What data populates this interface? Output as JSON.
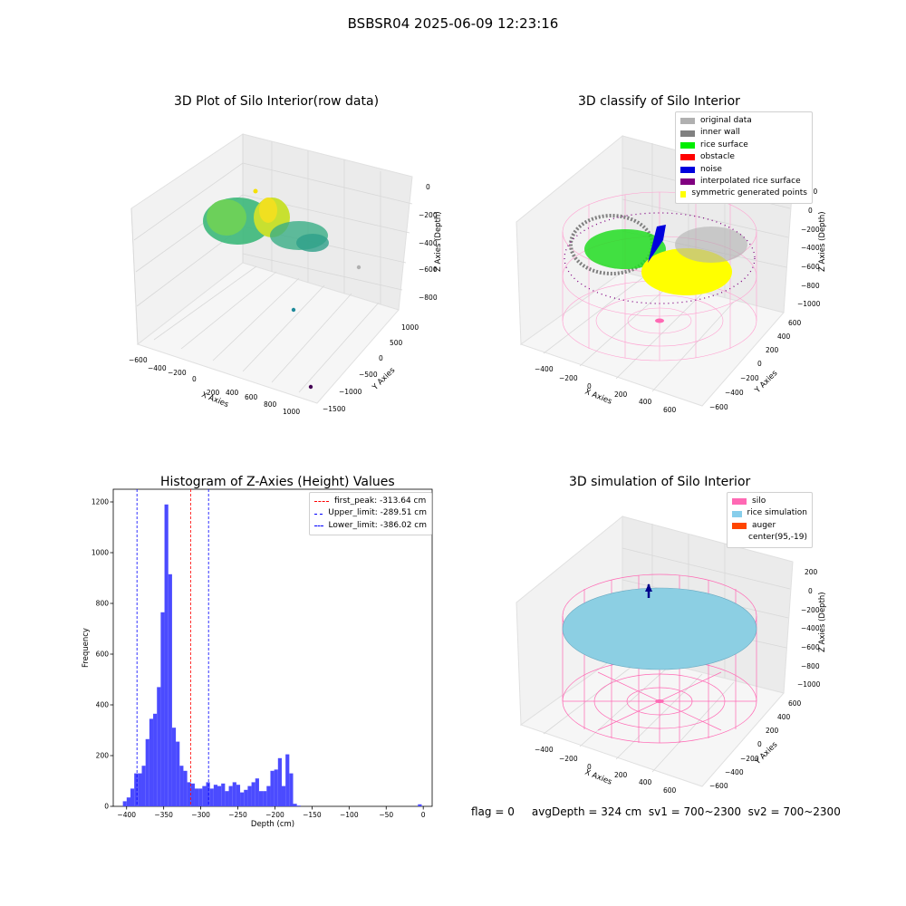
{
  "figure": {
    "suptitle": "BSBSR04 2025-06-09 12:23:16",
    "footer": "flag = 0     avgDepth = 324 cm  sv1 = 700~2300  sv2 = 700~2300"
  },
  "panels": {
    "raw": {
      "title": "3D Plot of Silo Interior(row data)",
      "xlabel": "X Axies",
      "ylabel": "Y Axies",
      "zlabel": "Z Axies (Depth)",
      "xticks": [
        "−600",
        "−400",
        "−200",
        "0",
        "200",
        "400",
        "600",
        "800",
        "1000"
      ],
      "yticks": [
        "−1500",
        "−1000",
        "−500",
        "0",
        "500",
        "1000"
      ],
      "zticks": [
        "0",
        "−200",
        "−400",
        "−600",
        "−800"
      ]
    },
    "classify": {
      "title": "3D classify of Silo Interior",
      "xlabel": "X Axies",
      "ylabel": "Y Axies",
      "zlabel": "Z Axies (Depth)",
      "xticks": [
        "−400",
        "−200",
        "0",
        "200",
        "400",
        "600"
      ],
      "yticks": [
        "−600",
        "−400",
        "−200",
        "0",
        "200",
        "400",
        "600"
      ],
      "zticks": [
        "200",
        "0",
        "−200",
        "−400",
        "−600",
        "−800",
        "−1000"
      ],
      "legend": [
        {
          "label": "original data",
          "color": "#b0b0b0"
        },
        {
          "label": "inner wall",
          "color": "#808080"
        },
        {
          "label": "rice surface",
          "color": "#00ee00"
        },
        {
          "label": "obstacle",
          "color": "#ff0000"
        },
        {
          "label": "noise",
          "color": "#0000dd"
        },
        {
          "label": "interpolated rice surface",
          "color": "#800080"
        },
        {
          "label": "symmetric generated points",
          "color": "#ffff00"
        }
      ]
    },
    "simulation": {
      "title": "3D simulation of Silo Interior",
      "xlabel": "X Axies",
      "ylabel": "Y Axies",
      "zlabel": "Z Axies (Depth)",
      "xticks": [
        "−400",
        "−200",
        "0",
        "200",
        "400",
        "600"
      ],
      "yticks": [
        "−600",
        "−400",
        "−200",
        "0",
        "200",
        "400",
        "600"
      ],
      "zticks": [
        "200",
        "0",
        "−200",
        "−400",
        "−600",
        "−800",
        "−1000"
      ],
      "legend": [
        {
          "label": "silo",
          "color": "#ff69b4"
        },
        {
          "label": "rice simulation",
          "color": "#87ceeb"
        },
        {
          "label": "auger",
          "color": "#ff4500"
        },
        {
          "label": "center(95,-19)",
          "color": ""
        }
      ]
    }
  },
  "chart_data": {
    "type": "bar",
    "title": "Histogram of Z-Axies (Height) Values",
    "xlabel": "Depth (cm)",
    "ylabel": "Frequency",
    "xlim": [
      -418,
      12
    ],
    "ylim": [
      0,
      1250
    ],
    "xticks": [
      -400,
      -350,
      -300,
      -250,
      -200,
      -150,
      -100,
      -50,
      0
    ],
    "yticks": [
      0,
      200,
      400,
      600,
      800,
      1000,
      1200
    ],
    "bin_width": 5.1,
    "bins_left": [
      -405,
      -399.9,
      -394.8,
      -389.7,
      -384.6,
      -379.5,
      -374.4,
      -369.3,
      -364.2,
      -359.1,
      -354,
      -348.9,
      -343.8,
      -338.7,
      -333.6,
      -328.5,
      -323.4,
      -318.3,
      -313.2,
      -308.1,
      -303,
      -297.9,
      -292.8,
      -287.7,
      -282.6,
      -277.5,
      -272.4,
      -267.3,
      -262.2,
      -257.1,
      -252,
      -246.9,
      -241.8,
      -236.7,
      -231.6,
      -226.5,
      -221.4,
      -216.3,
      -211.2,
      -206.1,
      -201,
      -195.9,
      -190.8,
      -185.7,
      -180.6,
      -175.5,
      -170.4,
      -165.3,
      -160.2,
      -155.1,
      -150,
      -144.9,
      -139.8,
      -134.7,
      -129.6,
      -124.5,
      -119.4,
      -114.3,
      -109.2,
      -104.1,
      -99,
      -93.9,
      -88.8,
      -83.7,
      -78.6,
      -73.5,
      -68.4,
      -63.3,
      -58.2,
      -53.1,
      -48,
      -42.9,
      -37.8,
      -32.7,
      -27.6,
      -22.5,
      -17.4,
      -12.3,
      -7.2,
      -2.1
    ],
    "values": [
      20,
      35,
      70,
      130,
      130,
      160,
      265,
      345,
      365,
      470,
      765,
      1190,
      915,
      310,
      255,
      160,
      140,
      95,
      90,
      70,
      70,
      80,
      95,
      70,
      85,
      80,
      90,
      60,
      80,
      95,
      85,
      55,
      65,
      80,
      95,
      110,
      60,
      60,
      80,
      140,
      145,
      190,
      80,
      205,
      130,
      10,
      3,
      0,
      0,
      0,
      0,
      0,
      0,
      0,
      0,
      0,
      0,
      0,
      0,
      0,
      0,
      0,
      0,
      0,
      0,
      0,
      0,
      0,
      0,
      0,
      0,
      0,
      0,
      0,
      0,
      0,
      0,
      0,
      8,
      0
    ],
    "bar_color": "#4b4bff",
    "vlines": [
      {
        "label": "first_peak: -313.64 cm",
        "x": -313.64,
        "color": "#ff0000"
      },
      {
        "label": "Upper_limit: -289.51 cm",
        "x": -289.51,
        "color": "#0000ff"
      },
      {
        "label": "Lower_limit: -386.02 cm",
        "x": -386.02,
        "color": "#0000ff"
      }
    ],
    "legend_position": "top-right"
  }
}
